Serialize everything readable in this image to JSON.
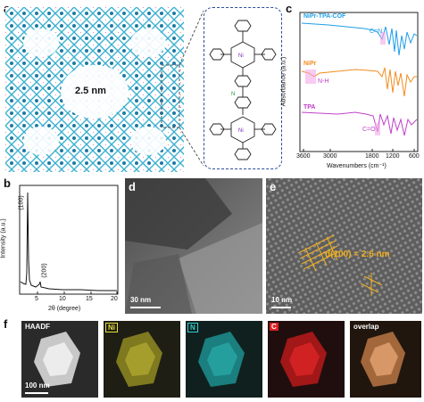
{
  "panel_labels": {
    "a": "a",
    "b": "b",
    "c": "c",
    "d": "d",
    "e": "e",
    "f": "f"
  },
  "panel_a": {
    "pore_label": "2.5 nm",
    "molecule_atoms": {
      "metal": "Ni",
      "nitrogen": "N"
    }
  },
  "panel_c": {
    "series": [
      {
        "name": "NiPr-TPA-COF",
        "color": "#1f9ee8",
        "annotation": "C=N"
      },
      {
        "name": "NiPr",
        "color": "#f28c1e",
        "annotation": "N-H"
      },
      {
        "name": "TPA",
        "color": "#c040c8",
        "annotation": "C=O"
      }
    ],
    "ylabel": "Absorbance (a.u.)",
    "xlabel": "Wavenumbers (cm⁻¹)",
    "xticks": [
      "3600",
      "3000",
      "1800",
      "1200",
      "600"
    ]
  },
  "panel_b": {
    "ylabel": "Intensity (a.u.)",
    "xlabel": "2θ (degree)",
    "xticks": [
      "5",
      "10",
      "15",
      "20"
    ],
    "peak_labels": [
      "(100)",
      "(200)"
    ]
  },
  "panel_d": {
    "scale": "30 nm"
  },
  "panel_e": {
    "d_spacing": "d(100) = 2.6 nm",
    "scale": "10 nm"
  },
  "panel_f": {
    "maps": [
      {
        "label": "HAADF",
        "color": "#ffffff",
        "scale": "100 nm"
      },
      {
        "label": "Ni",
        "color": "#e8e040"
      },
      {
        "label": "N",
        "color": "#30d0d0"
      },
      {
        "label": "C",
        "color": "#e02020"
      },
      {
        "label": "overlap",
        "color": "#f0a060"
      }
    ]
  }
}
